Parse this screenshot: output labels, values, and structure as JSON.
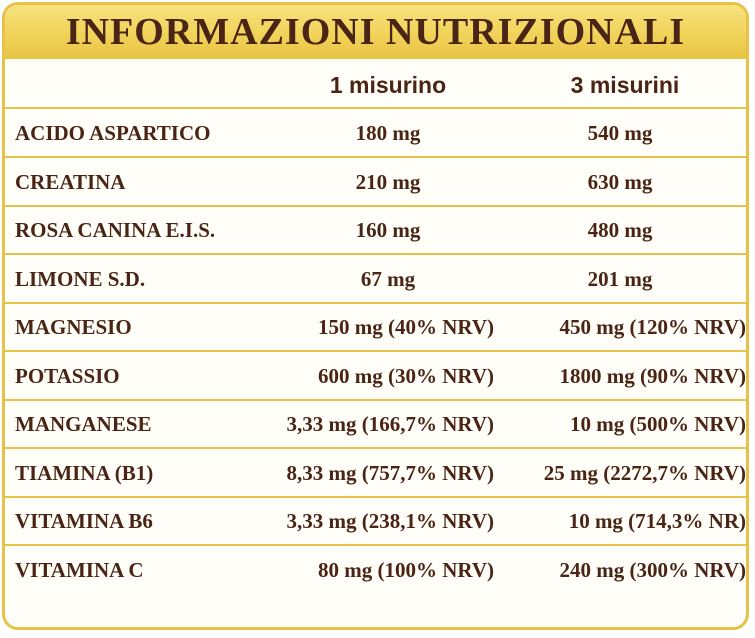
{
  "title": "INFORMAZIONI NUTRIZIONALI",
  "columns": [
    "1 misurino",
    "3 misurini"
  ],
  "rows": [
    {
      "name": "ACIDO ASPARTICO",
      "one": "180 mg",
      "three": "540 mg"
    },
    {
      "name": "CREATINA",
      "one": "210 mg",
      "three": "630 mg"
    },
    {
      "name": "ROSA CANINA E.I.S.",
      "one": "160 mg",
      "three": "480 mg"
    },
    {
      "name": "LIMONE S.D.",
      "one": "67 mg",
      "three": "201 mg"
    },
    {
      "name": "MAGNESIO",
      "one": "150 mg (40% NRV)",
      "three": "450 mg (120% NRV)"
    },
    {
      "name": "POTASSIO",
      "one": "600 mg (30% NRV)",
      "three": "1800 mg (90% NRV)"
    },
    {
      "name": "MANGANESE",
      "one": "3,33 mg (166,7% NRV)",
      "three": "10 mg (500% NRV)"
    },
    {
      "name": "TIAMINA (B1)",
      "one": "8,33 mg (757,7% NRV)",
      "three": "25 mg (2272,7% NRV)"
    },
    {
      "name": "VITAMINA B6",
      "one": "3,33 mg (238,1% NRV)",
      "three": "10 mg (714,3% NR)"
    },
    {
      "name": "VITAMINA C",
      "one": "80 mg (100% NRV)",
      "three": "240 mg (300% NRV)"
    }
  ],
  "colors": {
    "border": "#e6c24a",
    "header_bg": "#f1d35a",
    "text": "#4a2414"
  }
}
